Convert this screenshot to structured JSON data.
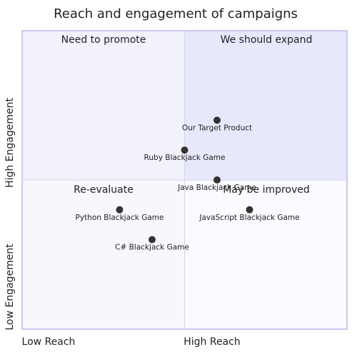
{
  "colors": {
    "quadrant1_fill": "#e7e8fb",
    "quadrant2_fill": "#f2f2fd",
    "quadrant3_fill": "#f7f7fe",
    "quadrant4_fill": "#fafaff",
    "border": "#c9c9f0",
    "divider": "#d4d4ef",
    "point": "#333333",
    "text": "#222222"
  },
  "chart_data": {
    "type": "scatter",
    "title": "Reach and engagement of campaigns",
    "x_axis": {
      "low": "Low Reach",
      "high": "High Reach"
    },
    "y_axis": {
      "low": "Low Engagement",
      "high": "High Engagement"
    },
    "xlim": [
      0,
      1
    ],
    "ylim": [
      0,
      1
    ],
    "quadrants": {
      "q1": "We should expand",
      "q2": "Need to promote",
      "q3": "Re-evaluate",
      "q4": "May be improved"
    },
    "points": [
      {
        "label": "Our Target Product",
        "x": 0.6,
        "y": 0.7
      },
      {
        "label": "Ruby Blackjack Game",
        "x": 0.5,
        "y": 0.6
      },
      {
        "label": "Java Blackjack Game",
        "x": 0.6,
        "y": 0.5
      },
      {
        "label": "Python Blackjack Game",
        "x": 0.3,
        "y": 0.4
      },
      {
        "label": "JavaScript Blackjack Game",
        "x": 0.7,
        "y": 0.4
      },
      {
        "label": "C# Blackjack Game",
        "x": 0.4,
        "y": 0.3
      }
    ]
  }
}
